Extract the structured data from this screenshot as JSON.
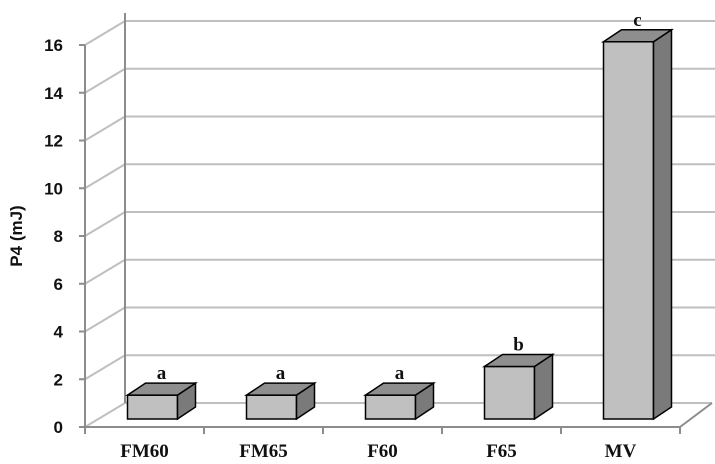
{
  "chart_data": {
    "type": "bar",
    "style": "3d-column",
    "categories": [
      "FM60",
      "FM65",
      "F60",
      "F65",
      "MV"
    ],
    "values": [
      1.0,
      1.0,
      1.0,
      2.2,
      15.8
    ],
    "data_labels": [
      "a",
      "a",
      "a",
      "b",
      "c"
    ],
    "title": "",
    "xlabel": "",
    "ylabel": "P4 (mJ)",
    "ylim": [
      0,
      16
    ],
    "yticks": [
      0,
      2,
      4,
      6,
      8,
      10,
      12,
      14,
      16
    ],
    "grid": true,
    "legend": "none",
    "colors": {
      "bar_front": "#c0c0c0",
      "bar_side": "#7a7a7a",
      "bar_top": "#8e8e8e",
      "bar_edge": "#000000",
      "grid": "#bfbfbf",
      "axis": "#8c8c8c"
    }
  }
}
